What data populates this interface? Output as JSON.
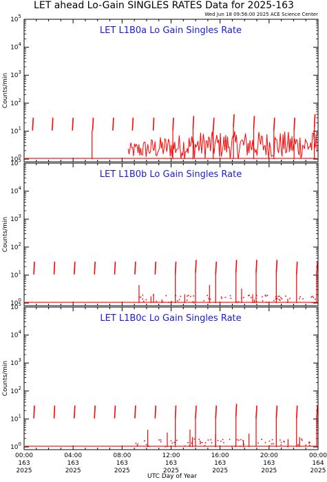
{
  "header": {
    "title": "LET ahead Lo-Gain SINGLES RATES Data for 2025-163",
    "timestamp": "Wed Jun 18 09:56:00 2025 ACE Science Center"
  },
  "x_axis": {
    "label": "UTC Day of Year",
    "ticks": [
      {
        "time": "00:00",
        "day": "163",
        "year": "2025"
      },
      {
        "time": "04:00",
        "day": "163",
        "year": "2025"
      },
      {
        "time": "08:00",
        "day": "163",
        "year": "2025"
      },
      {
        "time": "12:00",
        "day": "163",
        "year": "2025"
      },
      {
        "time": "16:00",
        "day": "163",
        "year": "2025"
      },
      {
        "time": "20:00",
        "day": "163",
        "year": "2025"
      },
      {
        "time": "00:00",
        "day": "164",
        "year": "2025"
      }
    ],
    "range_hours": [
      0,
      24
    ]
  },
  "colors": {
    "data": "#ff0000",
    "panel_title": "#1a1adc",
    "axes": "#000000"
  },
  "chart_data": [
    {
      "type": "line",
      "title": "LET L1B0a Lo Gain Singles Rate",
      "ylabel": "Counts/min",
      "yscale": "log",
      "ylim": [
        0.8,
        100000
      ],
      "ytick_labels": [
        "10^0",
        "10^1",
        "10^2",
        "10^3",
        "10^4",
        "10^5"
      ],
      "spikes": [
        {
          "x": 0.75,
          "y": 30
        },
        {
          "x": 2.35,
          "y": 30
        },
        {
          "x": 4.0,
          "y": 30
        },
        {
          "x": 5.65,
          "y": 30
        },
        {
          "x": 7.3,
          "y": 30
        },
        {
          "x": 8.9,
          "y": 30
        },
        {
          "x": 10.6,
          "y": 30
        },
        {
          "x": 12.2,
          "y": 30
        },
        {
          "x": 13.85,
          "y": 35
        },
        {
          "x": 15.5,
          "y": 30
        },
        {
          "x": 17.15,
          "y": 40
        },
        {
          "x": 18.8,
          "y": 35
        },
        {
          "x": 20.45,
          "y": 30
        },
        {
          "x": 22.1,
          "y": 30
        },
        {
          "x": 23.75,
          "y": 40
        }
      ],
      "drop_spikes": [
        {
          "x": 5.55,
          "y": 30
        }
      ],
      "baseline": 1.0,
      "noise_start_hour": 8.5,
      "noise_level_range": [
        1,
        10
      ]
    },
    {
      "type": "line",
      "title": "LET L1B0b Lo Gain Singles Rate",
      "ylabel": "Counts/min",
      "yscale": "log",
      "ylim": [
        0.8,
        100000
      ],
      "ytick_labels": [
        "10^0",
        "10^1",
        "10^2",
        "10^3",
        "10^4",
        "10^5"
      ],
      "spikes": [
        {
          "x": 0.85,
          "y": 30
        },
        {
          "x": 2.5,
          "y": 30
        },
        {
          "x": 4.15,
          "y": 30
        },
        {
          "x": 5.8,
          "y": 30
        },
        {
          "x": 7.45,
          "y": 30
        },
        {
          "x": 9.1,
          "y": 30
        },
        {
          "x": 10.75,
          "y": 30
        },
        {
          "x": 12.4,
          "y": 30
        },
        {
          "x": 14.05,
          "y": 35
        },
        {
          "x": 15.7,
          "y": 30
        },
        {
          "x": 17.35,
          "y": 35
        },
        {
          "x": 19.0,
          "y": 35
        },
        {
          "x": 20.65,
          "y": 35
        },
        {
          "x": 22.3,
          "y": 30
        },
        {
          "x": 23.95,
          "y": 30
        }
      ],
      "baseline": 1.0,
      "noise_start_hour": 9.0,
      "noise_level_range": [
        1,
        2
      ]
    },
    {
      "type": "line",
      "title": "LET L1B0c Lo Gain Singles Rate",
      "ylabel": "Counts/min",
      "yscale": "log",
      "ylim": [
        0.8,
        100000
      ],
      "ytick_labels": [
        "10^0",
        "10^1",
        "10^2",
        "10^3",
        "10^4",
        "10^5"
      ],
      "spikes": [
        {
          "x": 0.85,
          "y": 30
        },
        {
          "x": 2.5,
          "y": 30
        },
        {
          "x": 4.15,
          "y": 30
        },
        {
          "x": 5.8,
          "y": 30
        },
        {
          "x": 7.45,
          "y": 30
        },
        {
          "x": 9.1,
          "y": 30
        },
        {
          "x": 10.75,
          "y": 30
        },
        {
          "x": 12.4,
          "y": 30
        },
        {
          "x": 14.05,
          "y": 30
        },
        {
          "x": 15.7,
          "y": 30
        },
        {
          "x": 17.35,
          "y": 35
        },
        {
          "x": 19.0,
          "y": 30
        },
        {
          "x": 20.65,
          "y": 30
        },
        {
          "x": 22.3,
          "y": 30
        },
        {
          "x": 23.95,
          "y": 30
        }
      ],
      "baseline": 1.0,
      "noise_start_hour": 9.0,
      "noise_level_range": [
        1,
        2
      ]
    }
  ]
}
